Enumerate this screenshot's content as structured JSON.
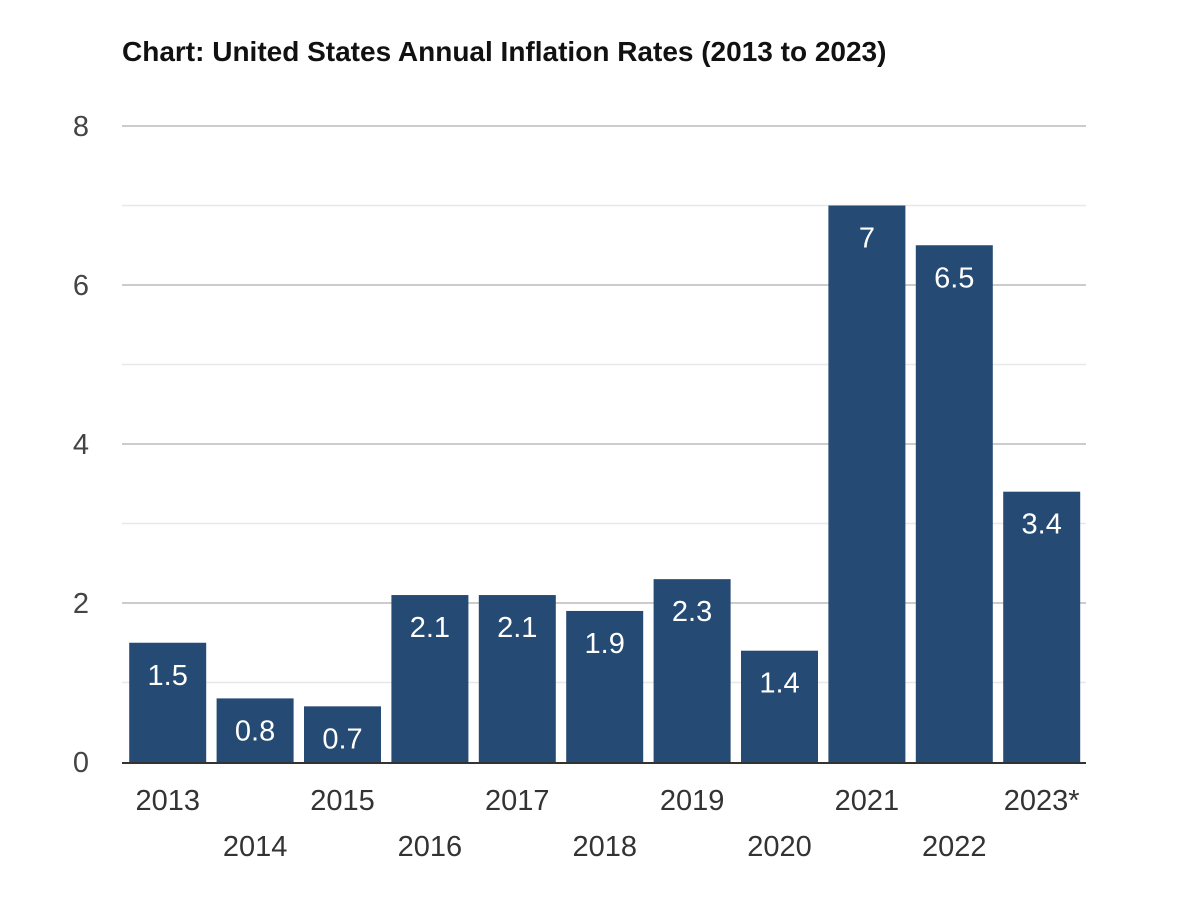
{
  "chart_data": {
    "type": "bar",
    "title": "Chart: United States Annual Inflation Rates (2013 to 2023)",
    "xlabel": "",
    "ylabel": "",
    "categories": [
      "2013",
      "2014",
      "2015",
      "2016",
      "2017",
      "2018",
      "2019",
      "2020",
      "2021",
      "2022",
      "2023*"
    ],
    "values": [
      1.5,
      0.8,
      0.7,
      2.1,
      2.1,
      1.9,
      2.3,
      1.4,
      7,
      6.5,
      3.4
    ],
    "data_labels": [
      "1.5",
      "0.8",
      "0.7",
      "2.1",
      "2.1",
      "1.9",
      "2.3",
      "1.4",
      "7",
      "6.5",
      "3.4"
    ],
    "ylim": [
      0,
      8
    ],
    "yticks": [
      0,
      2,
      4,
      6,
      8
    ],
    "grid": true,
    "legend": "none",
    "bar_color": "#254a73",
    "grid_color": "#cccccc"
  }
}
